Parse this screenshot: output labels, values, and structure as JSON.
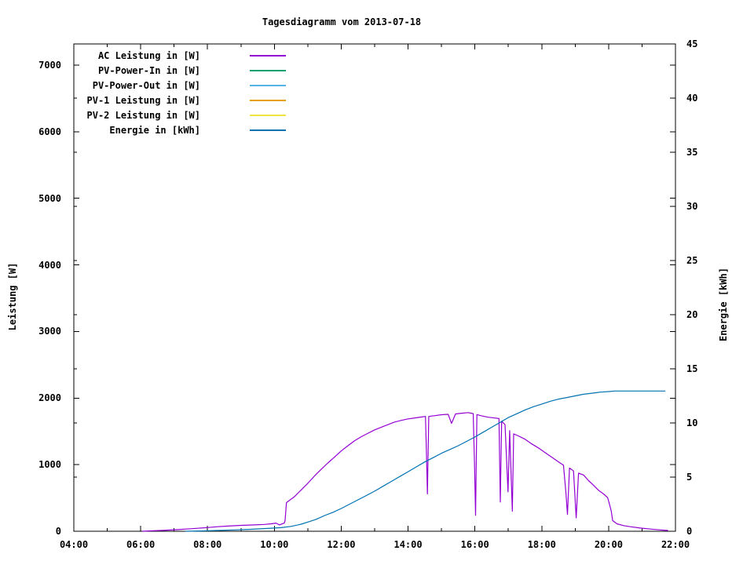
{
  "chart_data": {
    "type": "line",
    "title": "Tagesdiagramm vom 2013-07-18",
    "ylabel": "Leistung [W]",
    "y2label": "Energie [kWh]",
    "x_axis": {
      "unit": "time",
      "start_hour": 4,
      "end_hour": 22
    },
    "y_axis": {
      "label": "Leistung [W]",
      "min": 0,
      "max": 7318,
      "tick_step": 1000
    },
    "y2_axis": {
      "label": "Energie [kWh]",
      "min": 0,
      "max": 45,
      "tick_step": 5
    },
    "grid": false,
    "legend_position": "top-left-inside",
    "x_ticks": [
      {
        "h": 4,
        "label": "04:00"
      },
      {
        "h": 6,
        "label": "06:00"
      },
      {
        "h": 8,
        "label": "08:00"
      },
      {
        "h": 10,
        "label": "10:00"
      },
      {
        "h": 12,
        "label": "12:00"
      },
      {
        "h": 14,
        "label": "14:00"
      },
      {
        "h": 16,
        "label": "16:00"
      },
      {
        "h": 18,
        "label": "18:00"
      },
      {
        "h": 20,
        "label": "20:00"
      },
      {
        "h": 22,
        "label": "22:00"
      }
    ],
    "x_minor_hours": [
      5,
      7,
      9,
      11,
      13,
      15,
      17,
      19,
      21
    ],
    "y_ticks": [
      {
        "v": 0,
        "label": "0"
      },
      {
        "v": 1000,
        "label": "1000"
      },
      {
        "v": 2000,
        "label": "2000"
      },
      {
        "v": 3000,
        "label": "3000"
      },
      {
        "v": 4000,
        "label": "4000"
      },
      {
        "v": 5000,
        "label": "5000"
      },
      {
        "v": 6000,
        "label": "6000"
      },
      {
        "v": 7000,
        "label": "7000"
      }
    ],
    "y2_ticks": [
      {
        "v": 0,
        "label": "0"
      },
      {
        "v": 5,
        "label": "5"
      },
      {
        "v": 10,
        "label": "10"
      },
      {
        "v": 15,
        "label": "15"
      },
      {
        "v": 20,
        "label": "20"
      },
      {
        "v": 25,
        "label": "25"
      },
      {
        "v": 30,
        "label": "30"
      },
      {
        "v": 35,
        "label": "35"
      },
      {
        "v": 40,
        "label": "40"
      },
      {
        "v": 45,
        "label": "45"
      }
    ],
    "series": [
      {
        "name": "AC Leistung in [W]",
        "color": "#9400d3",
        "axis": "y",
        "points": [
          [
            6.05,
            0
          ],
          [
            6.3,
            6
          ],
          [
            6.6,
            12
          ],
          [
            7.0,
            22
          ],
          [
            7.5,
            38
          ],
          [
            8.0,
            55
          ],
          [
            8.3,
            68
          ],
          [
            8.6,
            78
          ],
          [
            9.0,
            88
          ],
          [
            9.4,
            96
          ],
          [
            9.7,
            102
          ],
          [
            9.9,
            112
          ],
          [
            10.05,
            122
          ],
          [
            10.15,
            96
          ],
          [
            10.3,
            125
          ],
          [
            10.32,
            165
          ],
          [
            10.36,
            430
          ],
          [
            10.6,
            520
          ],
          [
            10.8,
            620
          ],
          [
            11.0,
            720
          ],
          [
            11.2,
            830
          ],
          [
            11.4,
            930
          ],
          [
            11.6,
            1025
          ],
          [
            11.8,
            1115
          ],
          [
            12.0,
            1205
          ],
          [
            12.2,
            1285
          ],
          [
            12.4,
            1360
          ],
          [
            12.6,
            1420
          ],
          [
            12.8,
            1472
          ],
          [
            13.0,
            1522
          ],
          [
            13.2,
            1562
          ],
          [
            13.4,
            1602
          ],
          [
            13.6,
            1640
          ],
          [
            13.8,
            1665
          ],
          [
            14.0,
            1688
          ],
          [
            14.2,
            1702
          ],
          [
            14.4,
            1716
          ],
          [
            14.52,
            1724
          ],
          [
            14.55,
            1160
          ],
          [
            14.58,
            560
          ],
          [
            14.62,
            1724
          ],
          [
            14.8,
            1736
          ],
          [
            15.0,
            1750
          ],
          [
            15.2,
            1756
          ],
          [
            15.3,
            1620
          ],
          [
            15.42,
            1762
          ],
          [
            15.6,
            1772
          ],
          [
            15.8,
            1782
          ],
          [
            15.95,
            1766
          ],
          [
            15.99,
            990
          ],
          [
            16.02,
            240
          ],
          [
            16.06,
            1752
          ],
          [
            16.2,
            1734
          ],
          [
            16.4,
            1712
          ],
          [
            16.6,
            1700
          ],
          [
            16.72,
            1692
          ],
          [
            16.76,
            440
          ],
          [
            16.8,
            1652
          ],
          [
            16.9,
            1602
          ],
          [
            16.99,
            590
          ],
          [
            17.04,
            1512
          ],
          [
            17.12,
            300
          ],
          [
            17.16,
            1462
          ],
          [
            17.3,
            1432
          ],
          [
            17.5,
            1382
          ],
          [
            17.7,
            1312
          ],
          [
            17.9,
            1252
          ],
          [
            18.1,
            1182
          ],
          [
            18.3,
            1112
          ],
          [
            18.5,
            1042
          ],
          [
            18.65,
            992
          ],
          [
            18.72,
            600
          ],
          [
            18.77,
            252
          ],
          [
            18.83,
            950
          ],
          [
            18.95,
            905
          ],
          [
            19.03,
            200
          ],
          [
            19.1,
            872
          ],
          [
            19.25,
            845
          ],
          [
            19.4,
            760
          ],
          [
            19.55,
            690
          ],
          [
            19.7,
            615
          ],
          [
            19.85,
            560
          ],
          [
            19.97,
            505
          ],
          [
            20.02,
            420
          ],
          [
            20.08,
            300
          ],
          [
            20.12,
            160
          ],
          [
            20.25,
            112
          ],
          [
            20.45,
            85
          ],
          [
            20.65,
            68
          ],
          [
            20.95,
            48
          ],
          [
            21.25,
            33
          ],
          [
            21.55,
            20
          ],
          [
            21.78,
            12
          ]
        ]
      },
      {
        "name": "PV-Power-In in [W]",
        "color": "#009e73",
        "axis": "y",
        "points": []
      },
      {
        "name": "PV-Power-Out in [W]",
        "color": "#56b4e9",
        "axis": "y",
        "points": []
      },
      {
        "name": "PV-1 Leistung in [W]",
        "color": "#e69f00",
        "axis": "y",
        "points": []
      },
      {
        "name": "PV-2 Leistung in [W]",
        "color": "#f0e442",
        "axis": "y",
        "points": []
      },
      {
        "name": "Energie in [kWh]",
        "color": "#0072b2",
        "axis": "y2",
        "points": [
          [
            7.33,
            0
          ],
          [
            7.8,
            0.03
          ],
          [
            8.3,
            0.07
          ],
          [
            8.8,
            0.12
          ],
          [
            9.3,
            0.18
          ],
          [
            9.8,
            0.26
          ],
          [
            10.2,
            0.33
          ],
          [
            10.5,
            0.45
          ],
          [
            10.8,
            0.65
          ],
          [
            11.0,
            0.85
          ],
          [
            11.25,
            1.1
          ],
          [
            11.5,
            1.45
          ],
          [
            11.75,
            1.75
          ],
          [
            12.0,
            2.1
          ],
          [
            12.25,
            2.5
          ],
          [
            12.5,
            2.9
          ],
          [
            12.75,
            3.3
          ],
          [
            13.0,
            3.7
          ],
          [
            13.25,
            4.15
          ],
          [
            13.5,
            4.6
          ],
          [
            13.75,
            5.05
          ],
          [
            14.0,
            5.5
          ],
          [
            14.25,
            5.95
          ],
          [
            14.5,
            6.4
          ],
          [
            14.75,
            6.8
          ],
          [
            15.0,
            7.2
          ],
          [
            15.25,
            7.55
          ],
          [
            15.5,
            7.9
          ],
          [
            15.75,
            8.3
          ],
          [
            16.0,
            8.7
          ],
          [
            16.25,
            9.15
          ],
          [
            16.5,
            9.6
          ],
          [
            16.75,
            10.05
          ],
          [
            17.0,
            10.5
          ],
          [
            17.25,
            10.85
          ],
          [
            17.5,
            11.2
          ],
          [
            17.75,
            11.5
          ],
          [
            18.0,
            11.75
          ],
          [
            18.25,
            12.0
          ],
          [
            18.5,
            12.2
          ],
          [
            18.75,
            12.35
          ],
          [
            19.0,
            12.5
          ],
          [
            19.25,
            12.65
          ],
          [
            19.5,
            12.75
          ],
          [
            19.75,
            12.85
          ],
          [
            20.0,
            12.9
          ],
          [
            20.17,
            12.95
          ],
          [
            20.6,
            12.95
          ],
          [
            21.1,
            12.95
          ],
          [
            21.7,
            12.95
          ]
        ]
      }
    ]
  }
}
